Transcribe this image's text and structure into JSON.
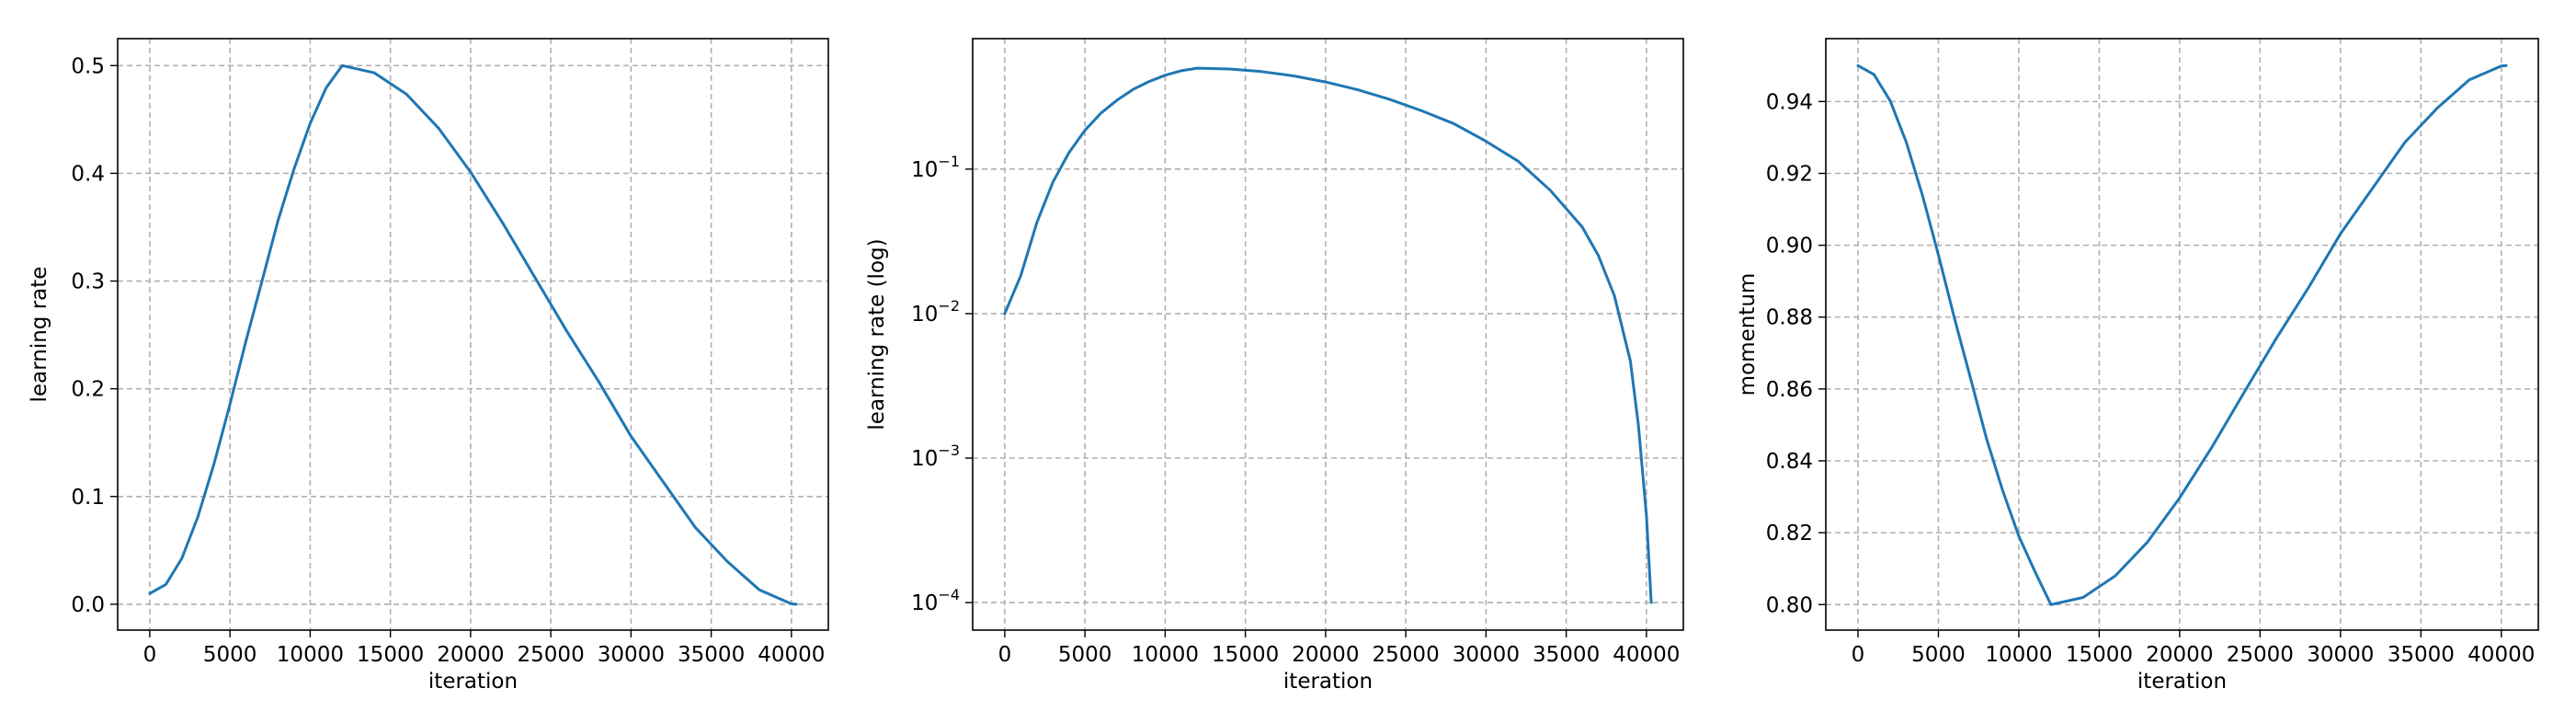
{
  "chart_data": [
    {
      "type": "line",
      "title": "",
      "xlabel": "iteration",
      "ylabel": "learning rate",
      "yscale": "linear",
      "xlim": [
        -2000,
        42300
      ],
      "ylim": [
        -0.024,
        0.525
      ],
      "xticks": [
        0,
        5000,
        10000,
        15000,
        20000,
        25000,
        30000,
        35000,
        40000
      ],
      "xtick_labels": [
        "0",
        "5000",
        "10000",
        "15000",
        "20000",
        "25000",
        "30000",
        "35000",
        "40000"
      ],
      "yticks": [
        0.0,
        0.1,
        0.2,
        0.3,
        0.4,
        0.5
      ],
      "ytick_labels": [
        "0.0",
        "0.1",
        "0.2",
        "0.3",
        "0.4",
        "0.5"
      ],
      "grid": true,
      "line_color": "#1f77b4",
      "series": [
        {
          "x": [
            0,
            1000,
            2000,
            3000,
            4000,
            5000,
            6000,
            7000,
            8000,
            9000,
            10000,
            11000,
            12000,
            14000,
            16000,
            18000,
            20000,
            22000,
            24000,
            26000,
            28000,
            30000,
            32000,
            34000,
            36000,
            38000,
            40000,
            40300
          ],
          "y": [
            0.01,
            0.0183,
            0.0426,
            0.081,
            0.13,
            0.1855,
            0.2445,
            0.3,
            0.3564,
            0.4043,
            0.4464,
            0.4794,
            0.5,
            0.4932,
            0.4734,
            0.4419,
            0.4011,
            0.3539,
            0.3035,
            0.2533,
            0.2063,
            0.1559,
            0.1136,
            0.0714,
            0.0397,
            0.0133,
            0.0003,
            0.0
          ]
        }
      ]
    },
    {
      "type": "line",
      "title": "",
      "xlabel": "iteration",
      "ylabel": "learning rate (log)",
      "yscale": "log",
      "xlim": [
        -2000,
        42300
      ],
      "ylim": [
        6.45e-05,
        0.8
      ],
      "xticks": [
        0,
        5000,
        10000,
        15000,
        20000,
        25000,
        30000,
        35000,
        40000
      ],
      "xtick_labels": [
        "0",
        "5000",
        "10000",
        "15000",
        "20000",
        "25000",
        "30000",
        "35000",
        "40000"
      ],
      "yticks": [
        0.0001,
        0.001,
        0.01,
        0.1
      ],
      "ytick_labels": [
        {
          "base": "10",
          "exp": "−4"
        },
        {
          "base": "10",
          "exp": "−3"
        },
        {
          "base": "10",
          "exp": "−2"
        },
        {
          "base": "10",
          "exp": "−1"
        }
      ],
      "grid": true,
      "line_color": "#1f77b4",
      "series": [
        {
          "x": [
            0,
            1000,
            2000,
            3000,
            4000,
            5000,
            6000,
            7000,
            8000,
            9000,
            10000,
            11000,
            12000,
            14000,
            16000,
            18000,
            20000,
            22000,
            24000,
            26000,
            28000,
            30000,
            32000,
            34000,
            36000,
            37000,
            38000,
            39000,
            39500,
            40000,
            40300
          ],
          "y": [
            0.01,
            0.0183,
            0.0426,
            0.081,
            0.13,
            0.1855,
            0.2445,
            0.3,
            0.3564,
            0.4043,
            0.4464,
            0.4794,
            0.5,
            0.4932,
            0.4734,
            0.4419,
            0.4011,
            0.3539,
            0.3035,
            0.2533,
            0.2063,
            0.1559,
            0.1136,
            0.0714,
            0.0397,
            0.0253,
            0.0133,
            0.0047,
            0.0017,
            0.0004,
            0.0001
          ]
        }
      ]
    },
    {
      "type": "line",
      "title": "",
      "xlabel": "iteration",
      "ylabel": "momentum",
      "yscale": "linear",
      "xlim": [
        -2000,
        42300
      ],
      "ylim": [
        0.7929,
        0.9575
      ],
      "xticks": [
        0,
        5000,
        10000,
        15000,
        20000,
        25000,
        30000,
        35000,
        40000
      ],
      "xtick_labels": [
        "0",
        "5000",
        "10000",
        "15000",
        "20000",
        "25000",
        "30000",
        "35000",
        "40000"
      ],
      "yticks": [
        0.8,
        0.82,
        0.84,
        0.86,
        0.88,
        0.9,
        0.92,
        0.94
      ],
      "ytick_labels": [
        "0.80",
        "0.82",
        "0.84",
        "0.86",
        "0.88",
        "0.90",
        "0.92",
        "0.94"
      ],
      "grid": true,
      "line_color": "#1f77b4",
      "series": [
        {
          "x": [
            0,
            1000,
            2000,
            3000,
            4000,
            5000,
            6000,
            7000,
            8000,
            9000,
            10000,
            11000,
            12000,
            14000,
            16000,
            18000,
            20000,
            22000,
            24000,
            26000,
            28000,
            30000,
            32000,
            34000,
            36000,
            38000,
            40000,
            40300
          ],
          "y": [
            0.95,
            0.9475,
            0.9402,
            0.9287,
            0.914,
            0.8973,
            0.8796,
            0.863,
            0.8461,
            0.8317,
            0.8191,
            0.8092,
            0.8,
            0.802,
            0.808,
            0.8174,
            0.8297,
            0.8438,
            0.859,
            0.874,
            0.8881,
            0.9032,
            0.9159,
            0.9286,
            0.9381,
            0.946,
            0.9499,
            0.95
          ]
        }
      ]
    }
  ]
}
